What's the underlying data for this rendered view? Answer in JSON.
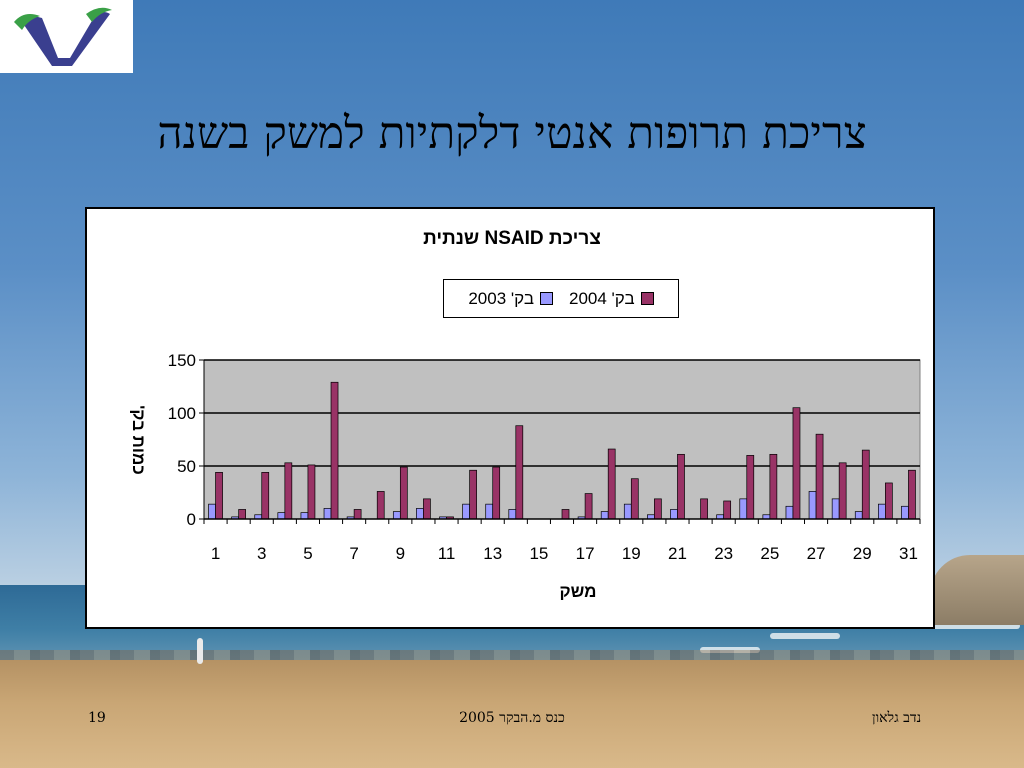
{
  "slide": {
    "title": "צריכת תרופות אנטי דלקתיות למשק בשנה",
    "footer_left": "19",
    "footer_center": "כנס מ.הבקר 2005",
    "footer_right": "נדב גלאון"
  },
  "colors": {
    "series_2003": "#9999ff",
    "series_2004": "#993366",
    "plot_bg": "#c0c0c0"
  },
  "chart_data": {
    "type": "bar",
    "title": "צריכת  NSAID  שנתית",
    "xlabel": "משק",
    "ylabel": "כמות בק'",
    "ylim": [
      0,
      150
    ],
    "yticks": [
      0,
      50,
      100,
      150
    ],
    "x": [
      1,
      2,
      3,
      4,
      5,
      6,
      7,
      8,
      9,
      10,
      11,
      12,
      13,
      14,
      15,
      16,
      17,
      18,
      19,
      20,
      21,
      22,
      23,
      24,
      25,
      26,
      27,
      28,
      29,
      30,
      31
    ],
    "xtick_labels": [
      "1",
      "3",
      "5",
      "7",
      "9",
      "11",
      "13",
      "15",
      "17",
      "19",
      "21",
      "23",
      "25",
      "27",
      "29",
      "31"
    ],
    "grid": true,
    "legend_position": "top",
    "series": [
      {
        "name": "בק' 2003",
        "values": [
          14,
          2,
          4,
          6,
          6,
          10,
          2,
          0,
          7,
          10,
          2,
          14,
          14,
          9,
          0,
          0,
          2,
          7,
          14,
          4,
          9,
          0,
          4,
          19,
          4,
          12,
          26,
          19,
          7,
          14,
          12
        ]
      },
      {
        "name": "בק' 2004",
        "values": [
          44,
          9,
          44,
          53,
          51,
          129,
          9,
          26,
          49,
          19,
          2,
          46,
          49,
          88,
          0,
          9,
          24,
          66,
          38,
          19,
          61,
          19,
          17,
          60,
          61,
          105,
          80,
          53,
          65,
          34,
          46
        ]
      }
    ]
  }
}
